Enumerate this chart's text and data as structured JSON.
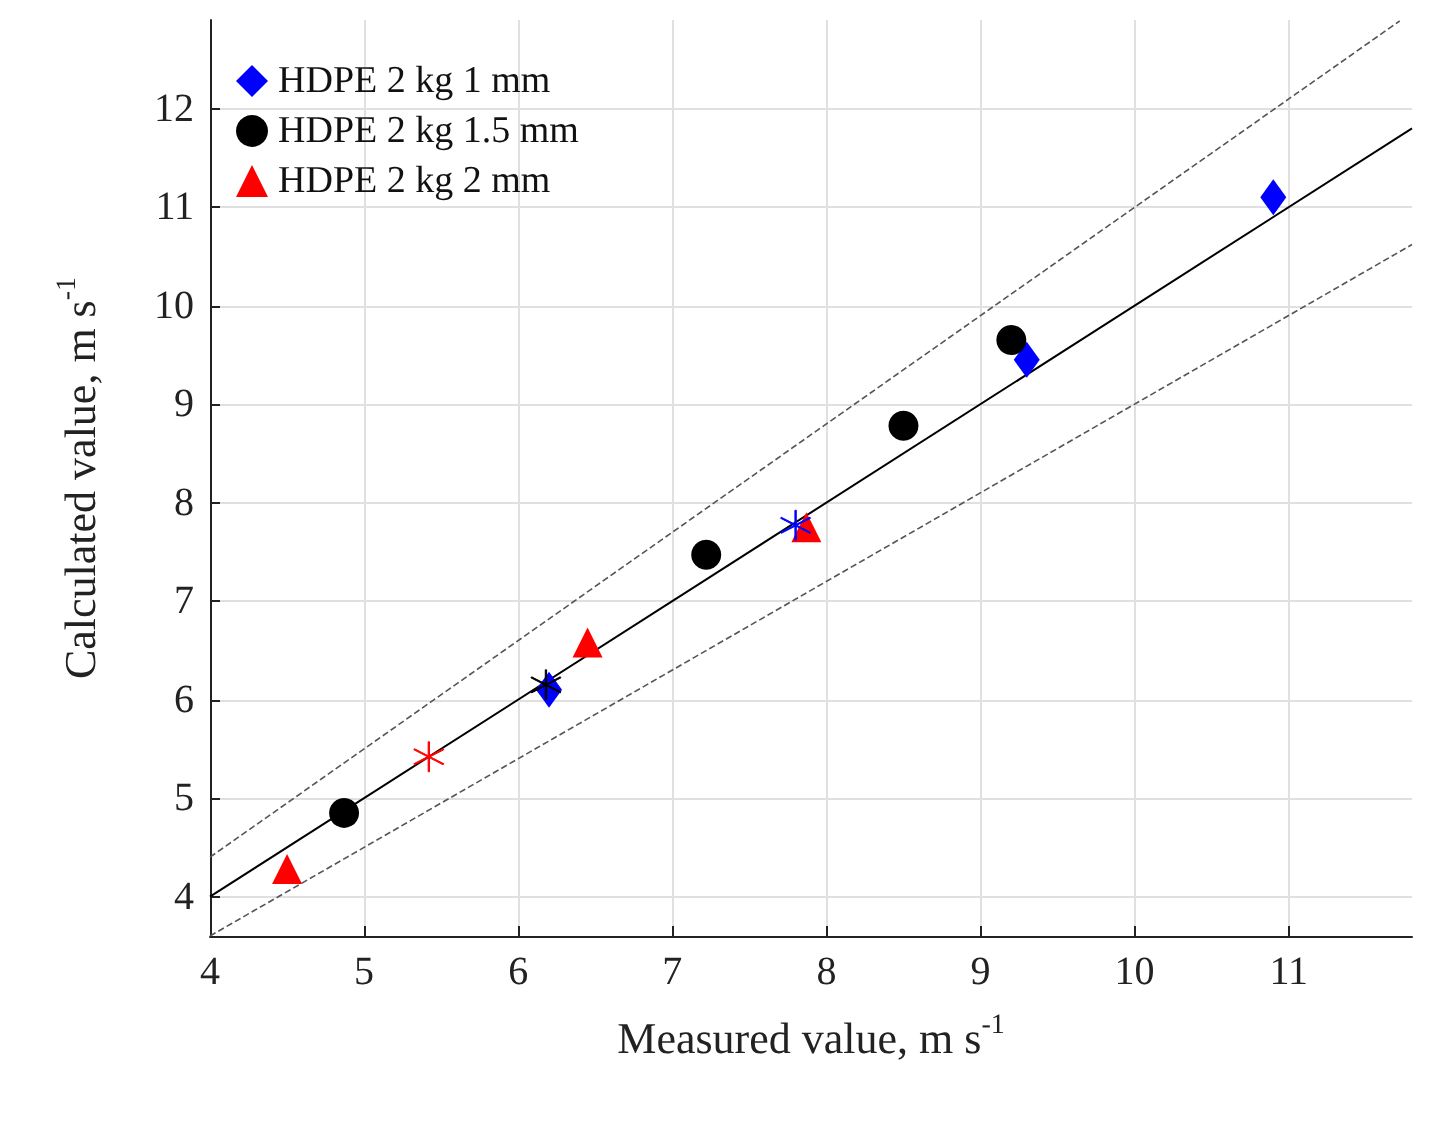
{
  "chart_data": {
    "type": "scatter",
    "xlabel": "Measured value, m s$^{-1}$",
    "ylabel": "Calculated value, m s$^{-1}$",
    "xlim": [
      4,
      11.8
    ],
    "ylim": [
      3.6,
      12.9
    ],
    "xticks": [
      4,
      5,
      6,
      7,
      8,
      9,
      10,
      11
    ],
    "yticks": [
      4,
      5,
      6,
      7,
      8,
      9,
      10,
      11,
      12
    ],
    "grid": true,
    "legend": "top left",
    "series": [
      {
        "name": "HDPE 2 kg 1 mm",
        "color": "#0000ff",
        "marker": "diamond",
        "x": [
          6.2,
          9.3,
          10.9
        ],
        "values": [
          6.1,
          9.45,
          11.1
        ]
      },
      {
        "name": "HDPE 2 kg 1.5 mm",
        "color": "#000000",
        "marker": "circle",
        "x": [
          4.87,
          7.22,
          8.5,
          9.2
        ],
        "values": [
          4.85,
          7.47,
          8.78,
          9.65
        ]
      },
      {
        "name": "HDPE 2 kg 2 mm",
        "color": "#ff0000",
        "marker": "triangle",
        "x": [
          4.5,
          6.45,
          7.87
        ],
        "values": [
          4.28,
          6.58,
          7.75
        ]
      },
      {
        "color": "#ff0000",
        "marker": "cross",
        "x": [
          5.42
        ],
        "values": [
          5.42
        ]
      },
      {
        "color": "#000000",
        "marker": "cross",
        "x": [
          6.18
        ],
        "values": [
          6.15
        ]
      },
      {
        "color": "#0000ff",
        "marker": "cross",
        "x": [
          7.8
        ],
        "values": [
          7.77
        ]
      },
      {
        "type": "line",
        "color": "#000000",
        "line_style": "solid",
        "marker": "none",
        "x": [
          4,
          11.8
        ],
        "values": [
          4,
          11.8
        ]
      },
      {
        "type": "line",
        "color": "#555555",
        "line_style": "dashed",
        "marker": "none",
        "x": [
          4,
          11.72
        ],
        "values": [
          4.4,
          12.89
        ]
      },
      {
        "type": "line",
        "color": "#555555",
        "line_style": "dashed",
        "marker": "none",
        "x": [
          4,
          11.8
        ],
        "values": [
          3.6,
          10.62
        ]
      }
    ]
  }
}
